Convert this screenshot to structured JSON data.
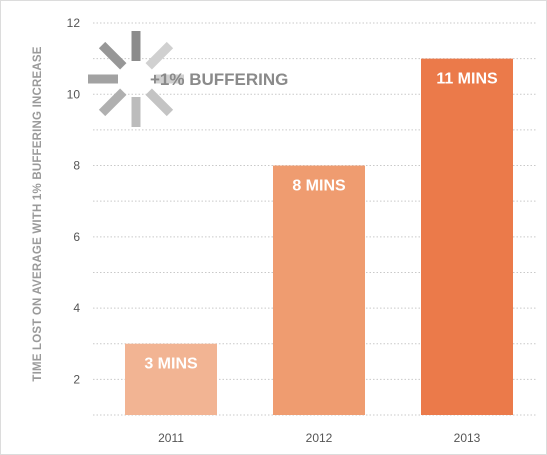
{
  "chart_data": {
    "type": "bar",
    "categories": [
      "2011",
      "2012",
      "2013"
    ],
    "values": [
      3,
      8,
      11
    ],
    "data_labels": [
      "3 MINS",
      "8 MINS",
      "11 MINS"
    ],
    "title": "",
    "xlabel": "",
    "ylabel": "TIME LOST ON AVERAGE WITH 1% BUFFERING INCREASE",
    "ylim": [
      1,
      12
    ],
    "yticks": [
      2,
      4,
      6,
      8,
      10,
      12
    ],
    "grid": "horizontal dotted",
    "legend": "top-left",
    "annotation": "+1% BUFFERING",
    "annotation_icon": "buffering-spinner-icon",
    "bar_colors": [
      "#f2b493",
      "#ef9c70",
      "#eb7a4a"
    ]
  }
}
